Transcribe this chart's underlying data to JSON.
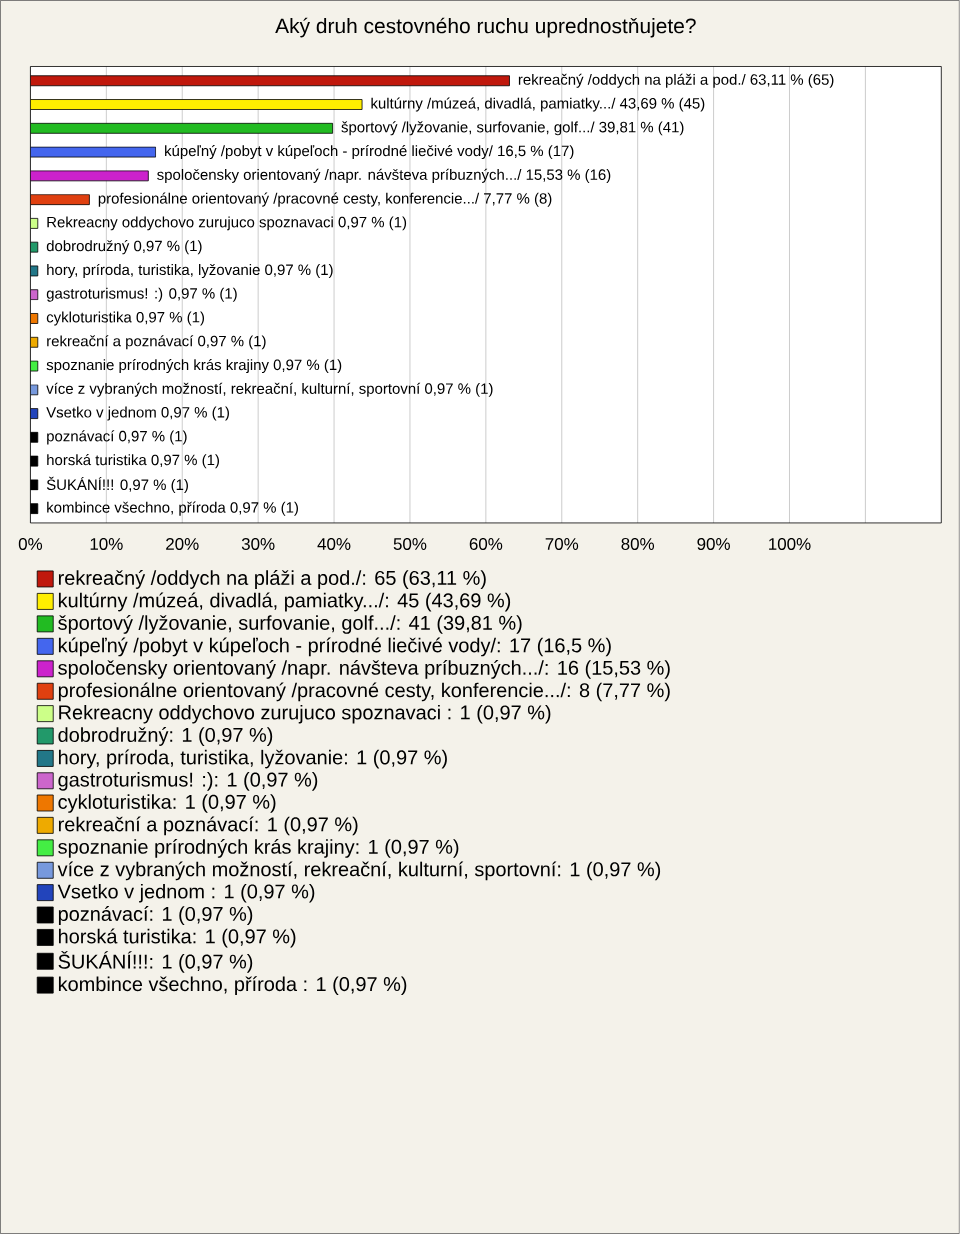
{
  "chart_data": {
    "type": "bar",
    "orientation": "horizontal",
    "title": "Aký druh cestovného ruchu uprednostňujete?",
    "categories": [
      null,
      null,
      null,
      null,
      null,
      null,
      null,
      null,
      null,
      null,
      null,
      null,
      null,
      null,
      null,
      null,
      null,
      null,
      null
    ],
    "xlim": [
      0,
      120
    ],
    "xticks": [
      {
        "value": 0,
        "label": "0%"
      },
      {
        "value": 10,
        "label": "10%"
      },
      {
        "value": 20,
        "label": "20%"
      },
      {
        "value": 30,
        "label": "30%"
      },
      {
        "value": 40,
        "label": "40%"
      },
      {
        "value": 50,
        "label": "50%"
      },
      {
        "value": 60,
        "label": "60%"
      },
      {
        "value": 70,
        "label": "70%"
      },
      {
        "value": 80,
        "label": "80%"
      },
      {
        "value": 90,
        "label": "90%"
      },
      {
        "value": 100,
        "label": "100%"
      },
      {
        "value": 110,
        "label": null
      }
    ],
    "grid": "x",
    "legend": "bottom",
    "series": [
      {
        "name": "rekreačný /oddych na pláži a pod./: 65 (63,11 %)",
        "color": "#c0180c",
        "values": [
          63.11,
          null,
          null,
          null,
          null,
          null,
          null,
          null,
          null,
          null,
          null,
          null,
          null,
          null,
          null,
          null,
          null,
          null,
          null
        ],
        "value_labels": [
          "rekreačný /oddych na pláži a pod./ 63,11 % (65)",
          null,
          null,
          null,
          null,
          null,
          null,
          null,
          null,
          null,
          null,
          null,
          null,
          null,
          null,
          null,
          null,
          null,
          null
        ]
      },
      {
        "name": "kultúrny /múzeá, divadlá, pamiatky.../: 45 (43,69 %)",
        "color": "#ffee00",
        "values": [
          null,
          43.69,
          null,
          null,
          null,
          null,
          null,
          null,
          null,
          null,
          null,
          null,
          null,
          null,
          null,
          null,
          null,
          null,
          null
        ],
        "value_labels": [
          null,
          "kultúrny /múzeá, divadlá, pamiatky.../ 43,69 % (45)",
          null,
          null,
          null,
          null,
          null,
          null,
          null,
          null,
          null,
          null,
          null,
          null,
          null,
          null,
          null,
          null,
          null
        ]
      },
      {
        "name": "športový /lyžovanie, surfovanie, golf.../: 41 (39,81 %)",
        "color": "#22bb22",
        "values": [
          null,
          null,
          39.81,
          null,
          null,
          null,
          null,
          null,
          null,
          null,
          null,
          null,
          null,
          null,
          null,
          null,
          null,
          null,
          null
        ],
        "value_labels": [
          null,
          null,
          "športový /lyžovanie, surfovanie, golf.../ 39,81 % (41)",
          null,
          null,
          null,
          null,
          null,
          null,
          null,
          null,
          null,
          null,
          null,
          null,
          null,
          null,
          null,
          null
        ]
      },
      {
        "name": "kúpeľný /pobyt v kúpeľoch - prírodné liečivé vody/: 17 (16,5 %)",
        "color": "#4466ee",
        "values": [
          null,
          null,
          null,
          16.5,
          null,
          null,
          null,
          null,
          null,
          null,
          null,
          null,
          null,
          null,
          null,
          null,
          null,
          null,
          null
        ],
        "value_labels": [
          null,
          null,
          null,
          "kúpeľný /pobyt v kúpeľoch - prírodné liečivé vody/ 16,5 % (17)",
          null,
          null,
          null,
          null,
          null,
          null,
          null,
          null,
          null,
          null,
          null,
          null,
          null,
          null,
          null
        ]
      },
      {
        "name": "spoločensky orientovaný /napr. návšteva príbuzných.../: 16 (15,53 %)",
        "color": "#cc22cc",
        "values": [
          null,
          null,
          null,
          null,
          15.53,
          null,
          null,
          null,
          null,
          null,
          null,
          null,
          null,
          null,
          null,
          null,
          null,
          null,
          null
        ],
        "value_labels": [
          null,
          null,
          null,
          null,
          "spoločensky orientovaný /napr. návšteva príbuzných.../ 15,53 % (16)",
          null,
          null,
          null,
          null,
          null,
          null,
          null,
          null,
          null,
          null,
          null,
          null,
          null,
          null
        ]
      },
      {
        "name": "profesionálne orientovaný /pracovné cesty, konferencie.../: 8 (7,77 %)",
        "color": "#e04010",
        "values": [
          null,
          null,
          null,
          null,
          null,
          7.77,
          null,
          null,
          null,
          null,
          null,
          null,
          null,
          null,
          null,
          null,
          null,
          null,
          null
        ],
        "value_labels": [
          null,
          null,
          null,
          null,
          null,
          "profesionálne orientovaný /pracovné cesty, konferencie.../ 7,77 % (8)",
          null,
          null,
          null,
          null,
          null,
          null,
          null,
          null,
          null,
          null,
          null,
          null,
          null
        ]
      },
      {
        "name": "Rekreacny oddychovo zurujuco spoznavaci : 1 (0,97 %)",
        "color": "#ccff88",
        "values": [
          null,
          null,
          null,
          null,
          null,
          null,
          0.97,
          null,
          null,
          null,
          null,
          null,
          null,
          null,
          null,
          null,
          null,
          null,
          null
        ],
        "value_labels": [
          null,
          null,
          null,
          null,
          null,
          null,
          "Rekreacny oddychovo zurujuco spoznavaci 0,97 % (1)",
          null,
          null,
          null,
          null,
          null,
          null,
          null,
          null,
          null,
          null,
          null,
          null
        ]
      },
      {
        "name": "dobrodružný: 1 (0,97 %)",
        "color": "#22996a",
        "values": [
          null,
          null,
          null,
          null,
          null,
          null,
          null,
          0.97,
          null,
          null,
          null,
          null,
          null,
          null,
          null,
          null,
          null,
          null,
          null
        ],
        "value_labels": [
          null,
          null,
          null,
          null,
          null,
          null,
          null,
          "dobrodružný 0,97 % (1)",
          null,
          null,
          null,
          null,
          null,
          null,
          null,
          null,
          null,
          null,
          null
        ]
      },
      {
        "name": "hory, príroda, turistika, lyžovanie: 1 (0,97 %)",
        "color": "#227788",
        "values": [
          null,
          null,
          null,
          null,
          null,
          null,
          null,
          null,
          0.97,
          null,
          null,
          null,
          null,
          null,
          null,
          null,
          null,
          null,
          null
        ],
        "value_labels": [
          null,
          null,
          null,
          null,
          null,
          null,
          null,
          null,
          "hory, príroda, turistika, lyžovanie 0,97 % (1)",
          null,
          null,
          null,
          null,
          null,
          null,
          null,
          null,
          null,
          null
        ]
      },
      {
        "name": "gastroturismus! :): 1 (0,97 %)",
        "color": "#cc66cc",
        "values": [
          null,
          null,
          null,
          null,
          null,
          null,
          null,
          null,
          null,
          0.97,
          null,
          null,
          null,
          null,
          null,
          null,
          null,
          null,
          null
        ],
        "value_labels": [
          null,
          null,
          null,
          null,
          null,
          null,
          null,
          null,
          null,
          "gastroturismus! :) 0,97 % (1)",
          null,
          null,
          null,
          null,
          null,
          null,
          null,
          null,
          null
        ]
      },
      {
        "name": "cykloturistika: 1 (0,97 %)",
        "color": "#ee7700",
        "values": [
          null,
          null,
          null,
          null,
          null,
          null,
          null,
          null,
          null,
          null,
          0.97,
          null,
          null,
          null,
          null,
          null,
          null,
          null,
          null
        ],
        "value_labels": [
          null,
          null,
          null,
          null,
          null,
          null,
          null,
          null,
          null,
          null,
          "cykloturistika 0,97 % (1)",
          null,
          null,
          null,
          null,
          null,
          null,
          null,
          null
        ]
      },
      {
        "name": "rekreační a poznávací: 1 (0,97 %)",
        "color": "#eeaa00",
        "values": [
          null,
          null,
          null,
          null,
          null,
          null,
          null,
          null,
          null,
          null,
          null,
          0.97,
          null,
          null,
          null,
          null,
          null,
          null,
          null
        ],
        "value_labels": [
          null,
          null,
          null,
          null,
          null,
          null,
          null,
          null,
          null,
          null,
          null,
          "rekreační a poznávací 0,97 % (1)",
          null,
          null,
          null,
          null,
          null,
          null,
          null
        ]
      },
      {
        "name": "spoznanie prírodných krás krajiny: 1 (0,97 %)",
        "color": "#44ee44",
        "values": [
          null,
          null,
          null,
          null,
          null,
          null,
          null,
          null,
          null,
          null,
          null,
          null,
          0.97,
          null,
          null,
          null,
          null,
          null,
          null
        ],
        "value_labels": [
          null,
          null,
          null,
          null,
          null,
          null,
          null,
          null,
          null,
          null,
          null,
          null,
          "spoznanie prírodných krás krajiny 0,97 % (1)",
          null,
          null,
          null,
          null,
          null,
          null
        ]
      },
      {
        "name": "více z vybraných možností, rekreační, kulturní, sportovní: 1 (0,97 %)",
        "color": "#7799dd",
        "values": [
          null,
          null,
          null,
          null,
          null,
          null,
          null,
          null,
          null,
          null,
          null,
          null,
          null,
          0.97,
          null,
          null,
          null,
          null,
          null
        ],
        "value_labels": [
          null,
          null,
          null,
          null,
          null,
          null,
          null,
          null,
          null,
          null,
          null,
          null,
          null,
          "více z vybraných možností, rekreační, kulturní, sportovní 0,97 % (1)",
          null,
          null,
          null,
          null,
          null
        ]
      },
      {
        "name": "Vsetko v jednom : 1 (0,97 %)",
        "color": "#2244bb",
        "values": [
          null,
          null,
          null,
          null,
          null,
          null,
          null,
          null,
          null,
          null,
          null,
          null,
          null,
          null,
          0.97,
          null,
          null,
          null,
          null
        ],
        "value_labels": [
          null,
          null,
          null,
          null,
          null,
          null,
          null,
          null,
          null,
          null,
          null,
          null,
          null,
          null,
          "Vsetko v jednom 0,97 % (1)",
          null,
          null,
          null,
          null
        ]
      },
      {
        "name": "poznávací: 1 (0,97 %)",
        "color": "#000000",
        "values": [
          null,
          null,
          null,
          null,
          null,
          null,
          null,
          null,
          null,
          null,
          null,
          null,
          null,
          null,
          null,
          0.97,
          null,
          null,
          null
        ],
        "value_labels": [
          null,
          null,
          null,
          null,
          null,
          null,
          null,
          null,
          null,
          null,
          null,
          null,
          null,
          null,
          null,
          "poznávací 0,97 % (1)",
          null,
          null,
          null
        ]
      },
      {
        "name": "horská turistika: 1 (0,97 %)",
        "color": "#000000",
        "values": [
          null,
          null,
          null,
          null,
          null,
          null,
          null,
          null,
          null,
          null,
          null,
          null,
          null,
          null,
          null,
          null,
          0.97,
          null,
          null
        ],
        "value_labels": [
          null,
          null,
          null,
          null,
          null,
          null,
          null,
          null,
          null,
          null,
          null,
          null,
          null,
          null,
          null,
          null,
          "horská turistika 0,97 % (1)",
          null,
          null
        ]
      },
      {
        "name": "ŠUKÁNÍ!!!: 1 (0,97 %)",
        "color": "#000000",
        "values": [
          null,
          null,
          null,
          null,
          null,
          null,
          null,
          null,
          null,
          null,
          null,
          null,
          null,
          null,
          null,
          null,
          null,
          0.97,
          null
        ],
        "value_labels": [
          null,
          null,
          null,
          null,
          null,
          null,
          null,
          null,
          null,
          null,
          null,
          null,
          null,
          null,
          null,
          null,
          null,
          "ŠUKÁNÍ!!! 0,97 % (1)",
          null
        ]
      },
      {
        "name": "kombince všechno, příroda : 1 (0,97 %)",
        "color": "#000000",
        "values": [
          null,
          null,
          null,
          null,
          null,
          null,
          null,
          null,
          null,
          null,
          null,
          null,
          null,
          null,
          null,
          null,
          null,
          null,
          0.97
        ],
        "value_labels": [
          null,
          null,
          null,
          null,
          null,
          null,
          null,
          null,
          null,
          null,
          null,
          null,
          null,
          null,
          null,
          null,
          null,
          null,
          "kombince všechno, příroda 0,97 % (1)"
        ]
      }
    ]
  }
}
